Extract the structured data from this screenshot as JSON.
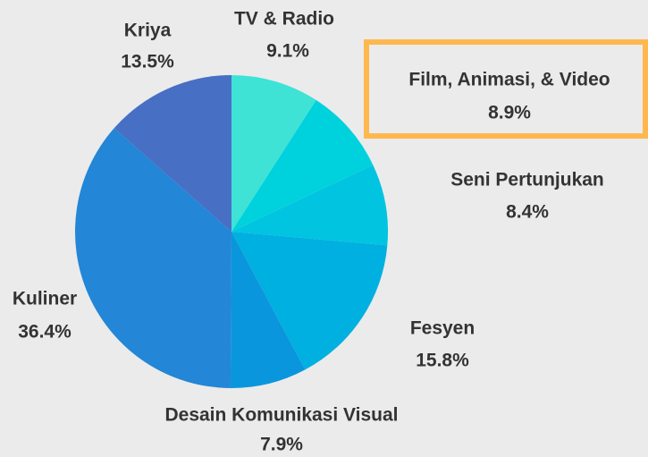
{
  "chart_data": {
    "type": "pie",
    "categories": [
      "TV & Radio",
      "Film, Animasi, & Video",
      "Seni Pertunjukan",
      "Fesyen",
      "Desain Komunikasi Visual",
      "Kuliner",
      "Kriya"
    ],
    "values": [
      9.1,
      8.9,
      8.4,
      15.8,
      7.9,
      36.4,
      13.5
    ],
    "value_labels": [
      "9.1%",
      "8.9%",
      "8.4%",
      "15.8%",
      "7.9%",
      "36.4%",
      "13.5%"
    ],
    "colors": [
      "#3ee3d6",
      "#00d2dd",
      "#00c4e0",
      "#00b0e0",
      "#0a96dc",
      "#2386d6",
      "#476fc4"
    ]
  }
}
